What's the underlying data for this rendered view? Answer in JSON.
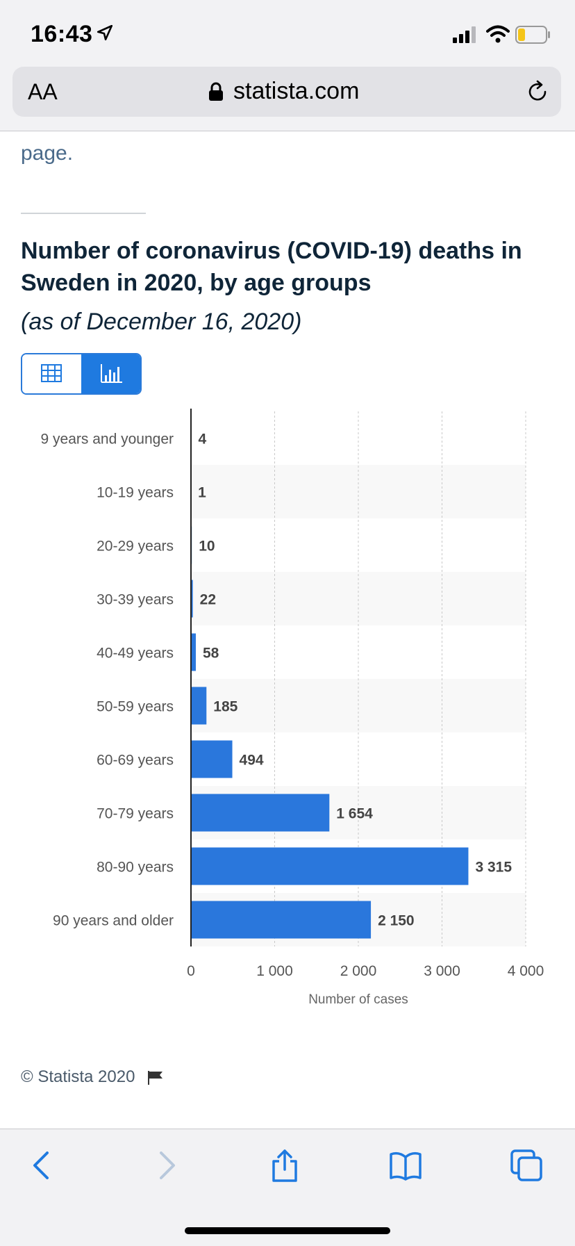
{
  "status_bar": {
    "time": "16:43"
  },
  "browser": {
    "text_size_label": "AA",
    "url": "statista.com"
  },
  "page": {
    "tail_text": "page.",
    "title": "Number of coronavirus (COVID-19) deaths in Sweden in 2020, by age groups",
    "subtitle": "(as of December 16, 2020)",
    "credit": "© Statista 2020"
  },
  "colors": {
    "bar": "#2a77dc",
    "accent": "#1f7ae0",
    "title": "#0f2538"
  },
  "icons": [
    "location-arrow-icon",
    "signal-icon",
    "wifi-icon",
    "battery-icon",
    "lock-icon",
    "reload-icon",
    "table-icon",
    "bar-chart-icon",
    "flag-icon",
    "back-icon",
    "forward-icon",
    "share-icon",
    "bookmarks-icon",
    "tabs-icon"
  ],
  "chart_data": {
    "type": "bar",
    "orientation": "horizontal",
    "categories": [
      "9 years and younger",
      "10-19 years",
      "20-29 years",
      "30-39 years",
      "40-49 years",
      "50-59 years",
      "60-69 years",
      "70-79 years",
      "80-90 years",
      "90 years and older"
    ],
    "values": [
      4,
      1,
      10,
      22,
      58,
      185,
      494,
      1654,
      3315,
      2150
    ],
    "value_labels": [
      "4",
      "1",
      "10",
      "22",
      "58",
      "185",
      "494",
      "1 654",
      "3 315",
      "2 150"
    ],
    "xlabel": "Number of cases",
    "xlim": [
      0,
      4000
    ],
    "xticks": [
      0,
      1000,
      2000,
      3000,
      4000
    ],
    "xtick_labels": [
      "0",
      "1 000",
      "2 000",
      "3 000",
      "4 000"
    ],
    "grid": true
  }
}
